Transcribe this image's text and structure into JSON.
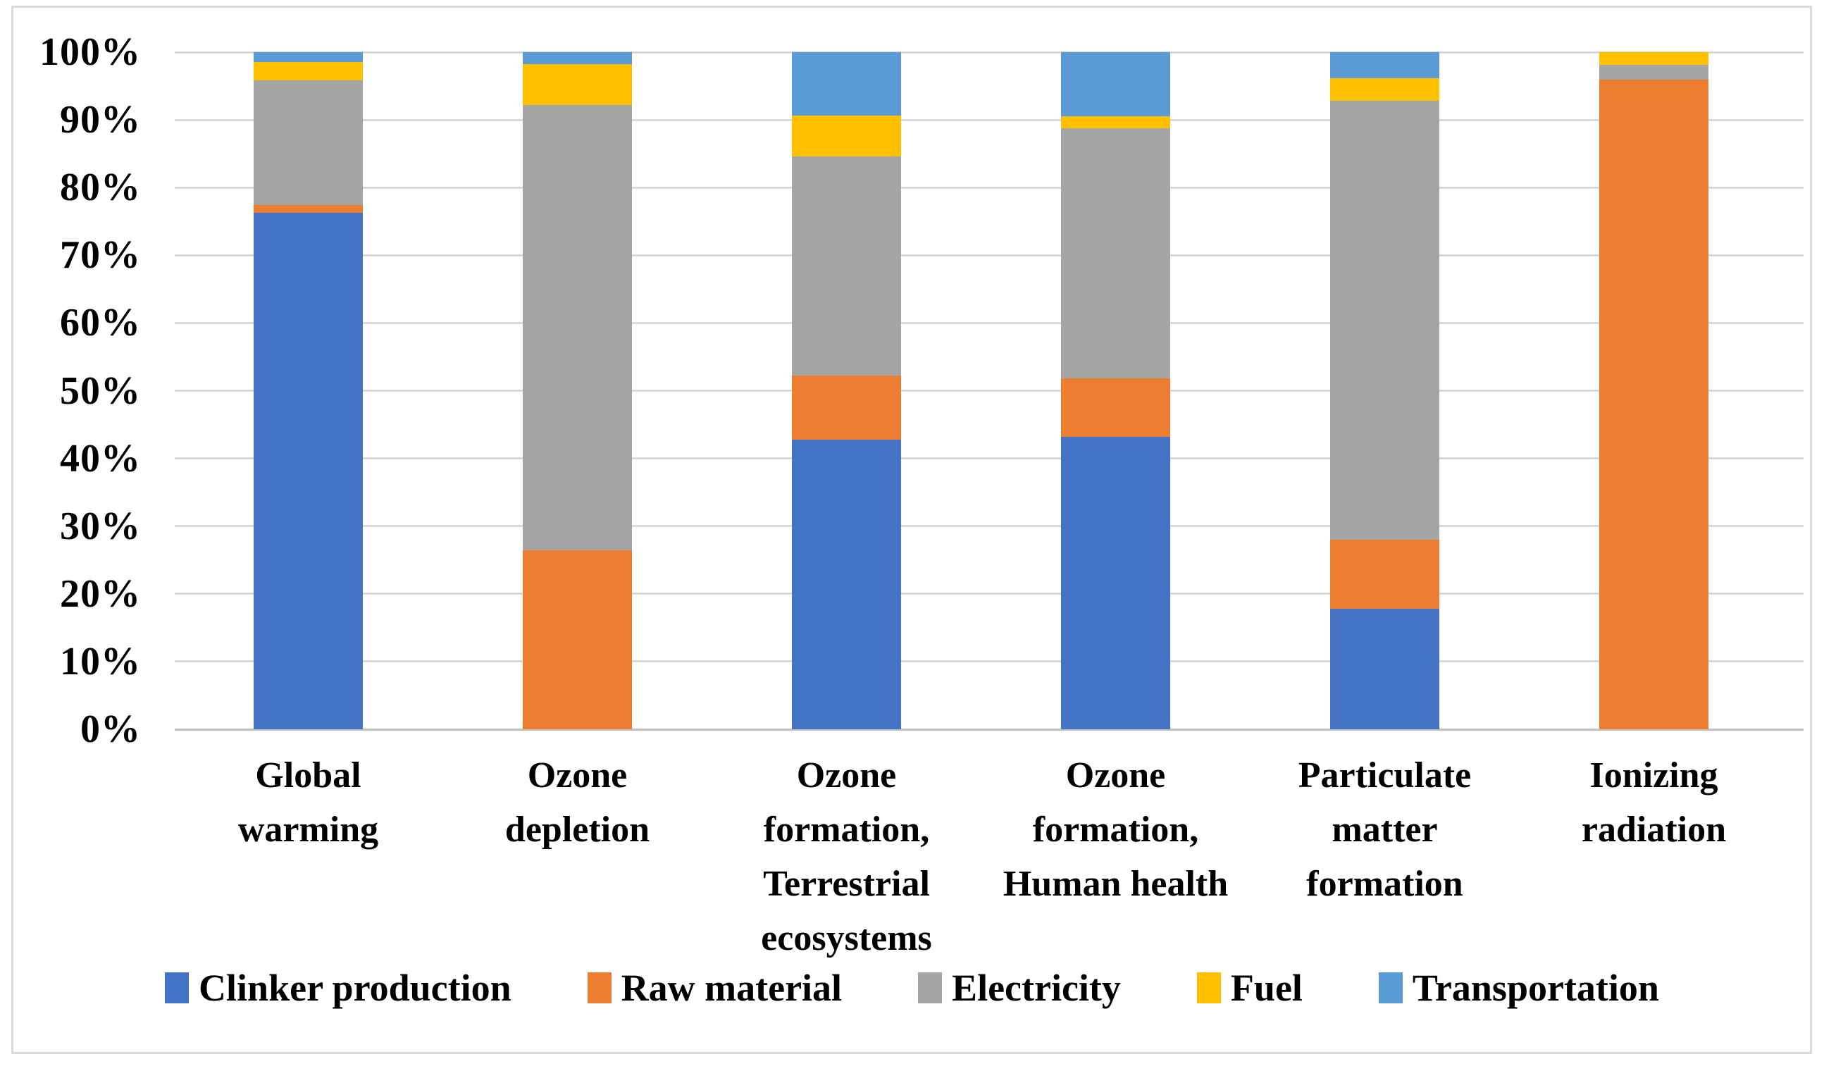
{
  "chart_data": {
    "type": "bar",
    "variant": "100-percent-stacked-column",
    "title": "",
    "xlabel": "",
    "ylabel": "",
    "ylim": [
      0,
      100
    ],
    "grid": true,
    "legend_position": "bottom",
    "y_ticks": [
      "0%",
      "10%",
      "20%",
      "30%",
      "40%",
      "50%",
      "60%",
      "70%",
      "80%",
      "90%",
      "100%"
    ],
    "categories": [
      "Global\nwarming",
      "Ozone\ndepletion",
      "Ozone\nformation,\nTerrestrial\necosystems",
      "Ozone\nformation,\nHuman health",
      "Particulate\nmatter\nformation",
      "Ionizing\nradiation"
    ],
    "series": [
      {
        "name": "Clinker production",
        "color": "#4472C4",
        "values": [
          76.3,
          0,
          42.8,
          43.2,
          17.8,
          0
        ]
      },
      {
        "name": "Raw material",
        "color": "#ED7D31",
        "values": [
          1.1,
          26.4,
          9.4,
          8.6,
          10.2,
          95.9
        ]
      },
      {
        "name": "Electricity",
        "color": "#A5A5A5",
        "values": [
          18.4,
          65.8,
          32.4,
          37.0,
          64.8,
          2.2
        ]
      },
      {
        "name": "Fuel",
        "color": "#FFC000",
        "values": [
          2.7,
          6.0,
          6.0,
          1.7,
          3.3,
          1.9
        ]
      },
      {
        "name": "Transportation",
        "color": "#5B9BD5",
        "values": [
          1.5,
          1.8,
          9.4,
          9.5,
          3.9,
          0
        ]
      }
    ],
    "colors": {
      "gridline": "#D9D9D9",
      "axis_line": "#BFBFBF",
      "figure_border": "#D9D9D9",
      "background": "#FFFFFF",
      "text": "#000000"
    }
  }
}
